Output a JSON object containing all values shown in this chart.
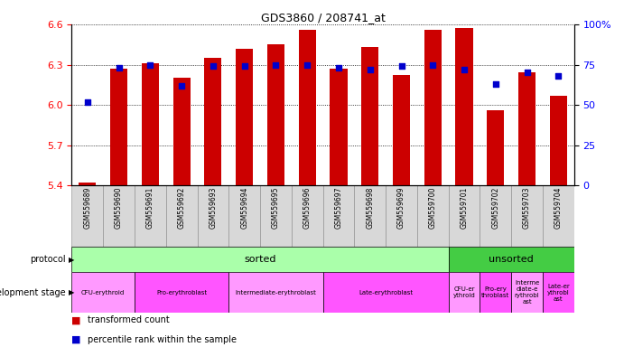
{
  "title": "GDS3860 / 208741_at",
  "samples": [
    "GSM559689",
    "GSM559690",
    "GSM559691",
    "GSM559692",
    "GSM559693",
    "GSM559694",
    "GSM559695",
    "GSM559696",
    "GSM559697",
    "GSM559698",
    "GSM559699",
    "GSM559700",
    "GSM559701",
    "GSM559702",
    "GSM559703",
    "GSM559704"
  ],
  "bar_values": [
    5.42,
    6.27,
    6.31,
    6.2,
    6.35,
    6.42,
    6.45,
    6.56,
    6.27,
    6.43,
    6.22,
    6.56,
    6.57,
    5.96,
    6.24,
    6.07
  ],
  "percentile_values": [
    52,
    73,
    75,
    62,
    74,
    74,
    75,
    75,
    73,
    72,
    74,
    75,
    72,
    63,
    70,
    68
  ],
  "ylim": [
    5.4,
    6.6
  ],
  "yticks": [
    5.4,
    5.7,
    6.0,
    6.3,
    6.6
  ],
  "y2ticks": [
    0,
    25,
    50,
    75,
    100
  ],
  "bar_color": "#cc0000",
  "dot_color": "#0000cc",
  "background_color": "#ffffff",
  "sorted_count": 12,
  "unsorted_count": 4,
  "sorted_color": "#aaffaa",
  "unsorted_color": "#44cc44",
  "stages_info": [
    {
      "label": "CFU-erythroid",
      "start": 0,
      "end": 2,
      "color": "#ff99ff"
    },
    {
      "label": "Pro-erythroblast",
      "start": 2,
      "end": 5,
      "color": "#ff55ff"
    },
    {
      "label": "Intermediate-erythroblast",
      "start": 5,
      "end": 8,
      "color": "#ff99ff"
    },
    {
      "label": "Late-erythroblast",
      "start": 8,
      "end": 12,
      "color": "#ff55ff"
    },
    {
      "label": "CFU-er\nythroid",
      "start": 12,
      "end": 13,
      "color": "#ff99ff"
    },
    {
      "label": "Pro-ery\nthroblast",
      "start": 13,
      "end": 14,
      "color": "#ff55ff"
    },
    {
      "label": "Interme\ndiate-e\nrythrobl\nast",
      "start": 14,
      "end": 15,
      "color": "#ff99ff"
    },
    {
      "label": "Late-er\nythrobl\nast",
      "start": 15,
      "end": 16,
      "color": "#ff55ff"
    }
  ],
  "xtick_bg_color": "#d8d8d8",
  "label_left_protocol": "protocol",
  "label_left_devstage": "development stage"
}
